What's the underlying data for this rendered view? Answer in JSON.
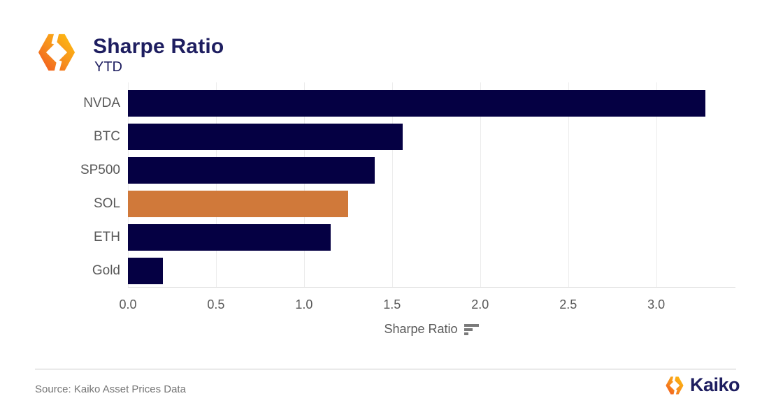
{
  "header": {
    "title": "Sharpe Ratio",
    "subtitle": "YTD",
    "logo_icon": "kaiko-logo"
  },
  "chart_data": {
    "type": "bar",
    "orientation": "horizontal",
    "title": "Sharpe Ratio",
    "subtitle": "YTD",
    "categories": [
      "NVDA",
      "BTC",
      "SP500",
      "SOL",
      "ETH",
      "Gold"
    ],
    "values": [
      3.28,
      1.56,
      1.4,
      1.25,
      1.15,
      0.2
    ],
    "highlight_category": "SOL",
    "bar_color": "#050043",
    "highlight_color": "#D0793A",
    "xlabel": "Sharpe Ratio",
    "xlim": [
      0,
      3.45
    ],
    "xticks": [
      0,
      0.5,
      1,
      1.5,
      2,
      2.5,
      3
    ],
    "xtick_labels": [
      "0.0",
      "0.5",
      "1.0",
      "1.5",
      "2.0",
      "2.5",
      "3.0"
    ],
    "grid": "vertical",
    "legend": "none"
  },
  "axis_icon": "sort-descending-icon",
  "footer": {
    "source": "Source: Kaiko Asset Prices Data",
    "brand": "Kaiko",
    "brand_icon": "kaiko-logo"
  },
  "colors": {
    "bar_navy": "#050043",
    "bar_orange": "#D0793A",
    "title_navy": "#1E1E60",
    "label_gray": "#595959",
    "gridline": "#ECECEC",
    "source_gray": "#757575",
    "logo_orange_dark": "#F1531F",
    "logo_orange_mid": "#F68D1E",
    "logo_orange_light": "#FFC20E"
  }
}
